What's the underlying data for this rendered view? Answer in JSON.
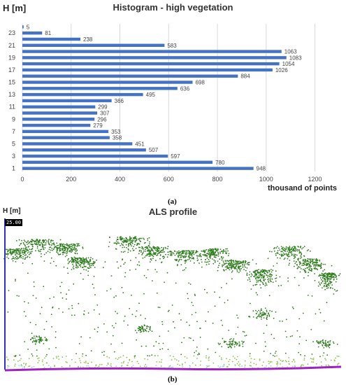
{
  "top_panel": {
    "title": "Histogram - high vegetation",
    "ylabel": "H [m]",
    "xlabel": "thousand of points",
    "panel_label": "(a)"
  },
  "bottom_panel": {
    "title": "ALS profile",
    "ylabel": "H [m]",
    "scale_label": "25.00",
    "panel_label": "(b)"
  },
  "colors": {
    "bar": "#4472c4",
    "grid": "#d9d9d9",
    "dark_green": "#2e7d1e",
    "light_green": "#8bc34a",
    "ground": "#a020c0",
    "left_axis": "#3030c0"
  },
  "chart_data": [
    {
      "type": "bar",
      "orientation": "horizontal",
      "title": "Histogram - high vegetation",
      "ylabel": "H [m]",
      "xlabel": "thousand of points",
      "categories": [
        "1",
        "2",
        "3",
        "4",
        "5",
        "6",
        "7",
        "8",
        "9",
        "10",
        "11",
        "12",
        "13",
        "14",
        "15",
        "16",
        "17",
        "18",
        "19",
        "20",
        "21",
        "22",
        "23",
        "24"
      ],
      "y_tick_labels": [
        "1",
        "3",
        "5",
        "7",
        "9",
        "11",
        "13",
        "15",
        "17",
        "19",
        "21",
        "23"
      ],
      "values": [
        948,
        780,
        597,
        507,
        451,
        358,
        353,
        279,
        296,
        307,
        299,
        366,
        495,
        636,
        698,
        884,
        1026,
        1054,
        1083,
        1063,
        583,
        238,
        81,
        5
      ],
      "xlim": [
        0,
        1250
      ],
      "x_ticks": [
        0,
        200,
        400,
        600,
        800,
        1000,
        1200
      ],
      "grid": true
    },
    {
      "type": "scatter",
      "title": "ALS profile",
      "ylabel": "H [m]",
      "annotations": [
        "25.00"
      ]
    }
  ]
}
